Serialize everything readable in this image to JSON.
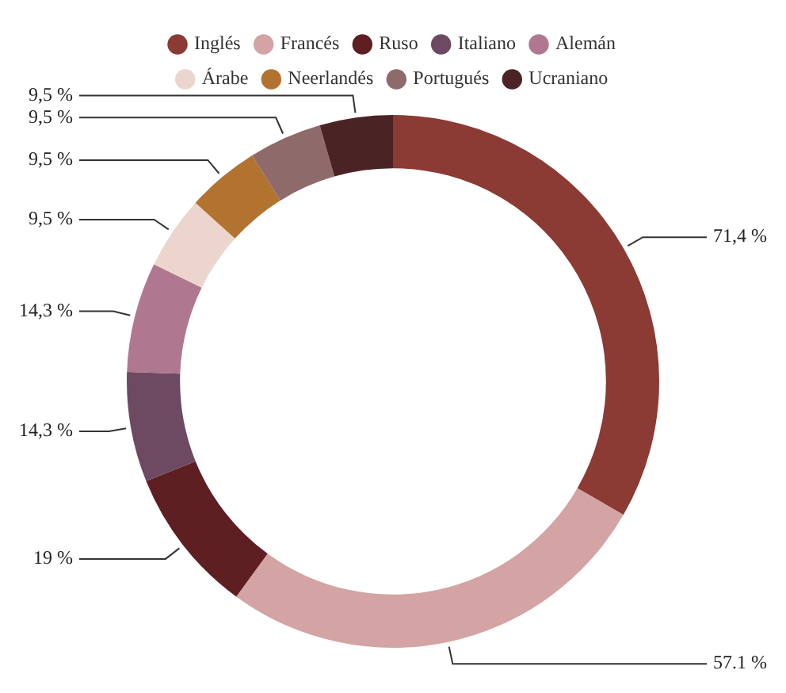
{
  "chart_data": {
    "type": "donut",
    "categories": [
      "Inglés",
      "Francés",
      "Ruso",
      "Italiano",
      "Alemán",
      "Árabe",
      "Neerlandés",
      "Portugués",
      "Ucraniano"
    ],
    "values": [
      71.4,
      57.1,
      19,
      14.3,
      14.3,
      9.5,
      9.5,
      9.5,
      9.5
    ],
    "value_labels": [
      "71,4 %",
      "57.1 %",
      "19 %",
      "14,3 %",
      "14,3 %",
      "9,5 %",
      "9,5 %",
      "9,5 %",
      "9,5 %"
    ],
    "colors": [
      "#8b3a34",
      "#d4a3a3",
      "#5e1f22",
      "#6e4a62",
      "#b07890",
      "#ecd5cc",
      "#b27330",
      "#8f6a6a",
      "#4a2424"
    ],
    "legend": "top"
  }
}
